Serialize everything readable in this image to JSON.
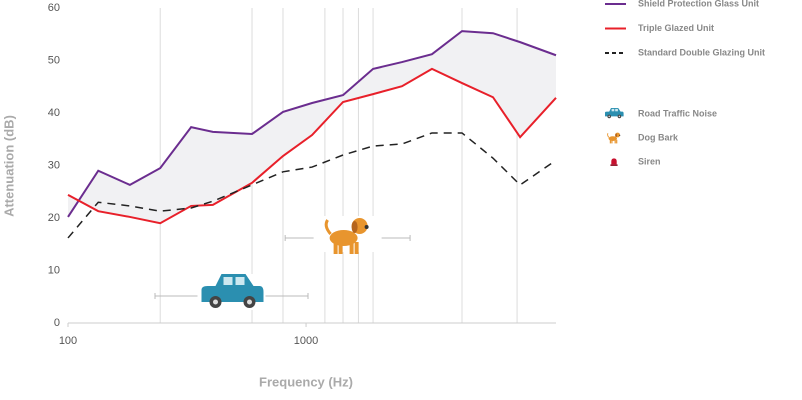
{
  "chart_data": {
    "type": "line",
    "x_label": "Frequency (Hz)",
    "y_label": "Attenuation (dB)",
    "x": [
      100,
      134,
      182,
      244,
      329,
      406,
      593,
      800,
      1060,
      1430,
      1912,
      2530,
      3380,
      4520,
      6100,
      7930,
      11220
    ],
    "xlim": [
      100,
      11220
    ],
    "xticks": [
      100,
      1000
    ],
    "log_x": true,
    "xgrid": [
      244,
      593,
      800,
      1200,
      1430,
      1660,
      1912,
      4520,
      7700
    ],
    "ylim": [
      0,
      60
    ],
    "yticks": [
      0,
      10,
      20,
      30,
      40,
      50,
      60
    ],
    "series": [
      {
        "name": "Shield Protection Glass Unit",
        "color": "#6b2d8f",
        "dash": false,
        "values": [
          20.2,
          29,
          26.3,
          29.5,
          37.3,
          36.4,
          36,
          40.2,
          41.9,
          43.4,
          48.4,
          49.7,
          51.2,
          55.6,
          55.2,
          53.5,
          51
        ]
      },
      {
        "name": "Triple Glazed Unit",
        "color": "#e8202a",
        "dash": false,
        "values": [
          24.4,
          21.3,
          20.2,
          19,
          22.3,
          22.5,
          26.7,
          31.8,
          35.8,
          42.1,
          43.6,
          45.1,
          48.4,
          45.7,
          43,
          35.4,
          42.9
        ]
      },
      {
        "name": "Standard Double Glazing Unit",
        "color": "#222222",
        "dash": true,
        "values": [
          16.2,
          23,
          22.3,
          21.3,
          21.9,
          23.2,
          26.3,
          28.8,
          29.7,
          32,
          33.7,
          34.1,
          36.2,
          36.2,
          31.4,
          26.3,
          31
        ]
      }
    ],
    "noise_sources": [
      {
        "name": "Road Traffic Noise",
        "range": [
          232,
          1019
        ]
      },
      {
        "name": "Dog Bark",
        "range": [
          817,
          2735
        ]
      },
      {
        "name": "Siren"
      }
    ]
  }
}
